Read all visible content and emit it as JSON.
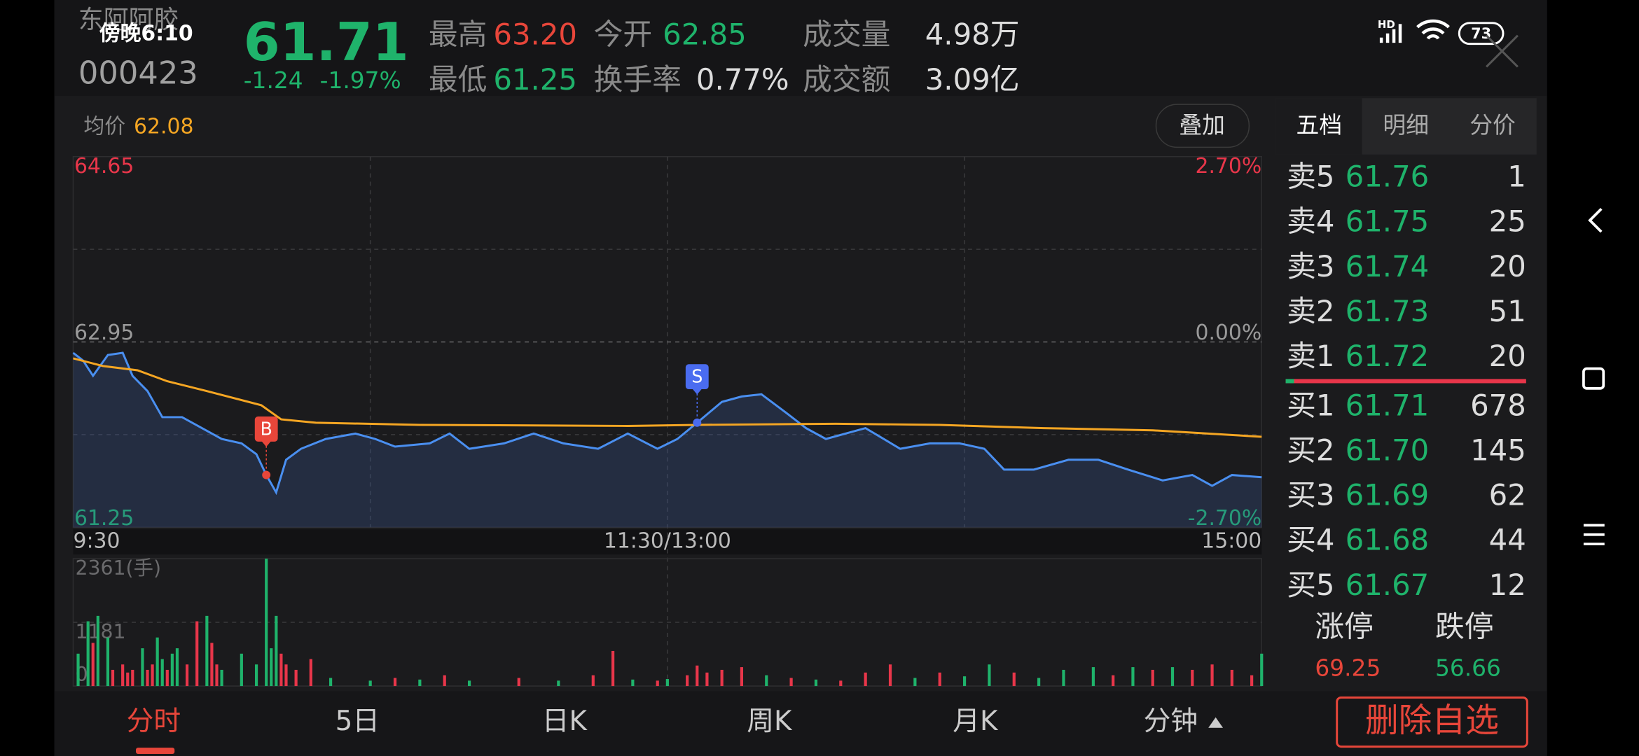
{
  "status_bar": {
    "time": "傍晚6:10",
    "network": "HD",
    "battery": "73"
  },
  "header": {
    "name": "东阿阿胶",
    "code": "000423",
    "price": "61.71",
    "change": "-1.24",
    "change_pct": "-1.97%",
    "stats": [
      {
        "label": "最高",
        "value": "63.20"
      },
      {
        "label": "今开",
        "value": "62.85"
      },
      {
        "label": "成交量",
        "value": "4.98万"
      },
      {
        "label": "最低",
        "value": "61.25"
      },
      {
        "label": "换手率",
        "value": "0.77%"
      },
      {
        "label": "成交额",
        "value": "3.09亿"
      }
    ]
  },
  "avg_price": {
    "label": "均价",
    "value": "62.08"
  },
  "overlay_button": "叠加",
  "side_tabs": [
    "五档",
    "明细",
    "分价"
  ],
  "order_book": {
    "asks": [
      {
        "label": "卖5",
        "price": "61.76",
        "volume": "1"
      },
      {
        "label": "卖4",
        "price": "61.75",
        "volume": "25"
      },
      {
        "label": "卖3",
        "price": "61.74",
        "volume": "20"
      },
      {
        "label": "卖2",
        "price": "61.73",
        "volume": "51"
      },
      {
        "label": "卖1",
        "price": "61.72",
        "volume": "20"
      }
    ],
    "bids": [
      {
        "label": "买1",
        "price": "61.71",
        "volume": "678"
      },
      {
        "label": "买2",
        "price": "61.70",
        "volume": "145"
      },
      {
        "label": "买3",
        "price": "61.69",
        "volume": "62"
      },
      {
        "label": "买4",
        "price": "61.68",
        "volume": "44"
      },
      {
        "label": "买5",
        "price": "61.67",
        "volume": "12"
      }
    ]
  },
  "limits": {
    "up_label": "涨停",
    "down_label": "跌停",
    "up": "69.25",
    "down": "56.66"
  },
  "bottom_tabs": [
    "分时",
    "5日",
    "日K",
    "周K",
    "月K",
    "分钟"
  ],
  "delete_button": "删除自选",
  "chart_data": [
    {
      "type": "line",
      "xlim": [
        0,
        240
      ],
      "xticks": [
        {
          "value": 0,
          "label": "9:30"
        },
        {
          "value": 120,
          "label": "11:30/13:00"
        },
        {
          "value": 240,
          "label": "15:00"
        }
      ],
      "ylim": [
        61.25,
        64.65
      ],
      "yticks": [
        64.65,
        62.95,
        61.25
      ],
      "ytick_colors": [
        "#e8364a",
        "#9a9a9a",
        "#1fb36b"
      ],
      "y2lim": [
        -2.7,
        2.7
      ],
      "y2ticks": [
        {
          "value": 2.7,
          "label": "2.70%"
        },
        {
          "value": 0,
          "label": "0.00%"
        },
        {
          "value": -2.7,
          "label": "-2.70%"
        }
      ],
      "y2tick_colors": [
        "#e8364a",
        "#9a9a9a",
        "#1fb36b"
      ],
      "grid": true,
      "series": [
        {
          "color": "#4a8ff0",
          "area": true,
          "x": [
            0,
            2,
            4,
            7,
            10,
            12,
            15,
            18,
            22,
            26,
            30,
            34,
            37,
            39,
            41,
            43,
            46,
            51,
            57,
            61,
            65,
            72,
            76,
            80,
            87,
            93,
            99,
            106,
            112,
            118,
            122,
            126,
            131,
            135,
            139,
            144,
            148,
            152,
            156,
            160,
            167,
            173,
            179,
            184,
            188,
            194,
            201,
            207,
            213,
            220,
            226,
            230,
            234,
            240
          ],
          "values": [
            62.85,
            62.78,
            62.64,
            62.83,
            62.85,
            62.64,
            62.5,
            62.26,
            62.26,
            62.16,
            62.06,
            62.02,
            61.92,
            61.73,
            61.57,
            61.87,
            61.97,
            62.06,
            62.11,
            62.06,
            61.99,
            62.02,
            62.11,
            61.97,
            62.02,
            62.11,
            62.02,
            61.97,
            62.11,
            61.97,
            62.06,
            62.21,
            62.4,
            62.45,
            62.47,
            62.3,
            62.16,
            62.06,
            62.11,
            62.16,
            61.97,
            62.02,
            62.02,
            61.97,
            61.78,
            61.78,
            61.87,
            61.87,
            61.78,
            61.68,
            61.73,
            61.63,
            61.73,
            61.71
          ]
        },
        {
          "color": "#f5a623",
          "x": [
            0,
            6,
            13,
            19,
            27,
            38,
            42,
            49,
            70,
            112,
            126,
            154,
            175,
            196,
            218,
            240
          ],
          "values": [
            62.8,
            62.73,
            62.69,
            62.59,
            62.5,
            62.37,
            62.24,
            62.21,
            62.19,
            62.18,
            62.19,
            62.2,
            62.19,
            62.16,
            62.14,
            62.08
          ]
        }
      ],
      "annotations": [
        {
          "label": "B",
          "x": 39,
          "y": 61.73,
          "color": "#e8463a"
        },
        {
          "label": "S",
          "x": 126,
          "y": 62.21,
          "color": "#4a6cf0"
        }
      ]
    },
    {
      "type": "bar",
      "xlim": [
        0,
        240
      ],
      "ylim": [
        0,
        2361
      ],
      "yticks": [
        {
          "value": 2361,
          "label": "2361(手)"
        },
        1181,
        0
      ],
      "grid": true,
      "x": [
        1,
        3,
        4,
        5,
        7,
        8,
        10,
        11,
        12,
        14,
        15,
        16,
        17,
        18,
        19,
        20,
        21,
        23,
        25,
        27,
        28,
        29,
        30,
        34,
        37,
        39,
        40,
        41,
        42,
        43,
        45,
        48,
        52,
        60,
        65,
        70,
        75,
        80,
        90,
        98,
        105,
        109,
        113,
        118,
        120,
        124,
        126,
        128,
        131,
        135,
        140,
        145,
        150,
        155,
        160,
        165,
        170,
        175,
        180,
        185,
        190,
        195,
        200,
        206,
        210,
        214,
        218,
        222,
        226,
        230,
        234,
        238,
        240
      ],
      "values": [
        600,
        1200,
        800,
        1300,
        900,
        300,
        400,
        250,
        300,
        700,
        300,
        400,
        900,
        500,
        300,
        600,
        700,
        400,
        1200,
        1300,
        800,
        400,
        300,
        600,
        400,
        2361,
        700,
        1300,
        600,
        400,
        300,
        500,
        150,
        100,
        150,
        120,
        200,
        100,
        150,
        100,
        200,
        650,
        120,
        100,
        130,
        200,
        380,
        250,
        300,
        350,
        200,
        150,
        120,
        100,
        250,
        400,
        150,
        250,
        180,
        400,
        250,
        150,
        300,
        350,
        200,
        350,
        300,
        350,
        300,
        400,
        300,
        200,
        600
      ],
      "colors": [
        "#1fb36b",
        "#1fb36b",
        "#e8364a",
        "#1fb36b",
        "#1fb36b",
        "#e8364a",
        "#e8364a",
        "#e8364a",
        "#e8364a",
        "#1fb36b",
        "#e8364a",
        "#e8364a",
        "#1fb36b",
        "#1fb36b",
        "#e8364a",
        "#1fb36b",
        "#1fb36b",
        "#e8364a",
        "#e8364a",
        "#1fb36b",
        "#e8364a",
        "#e8364a",
        "#1fb36b",
        "#1fb36b",
        "#1fb36b",
        "#1fb36b",
        "#1fb36b",
        "#1fb36b",
        "#e8364a",
        "#e8364a",
        "#e8364a",
        "#e8364a",
        "#1fb36b",
        "#1fb36b",
        "#e8364a",
        "#1fb36b",
        "#e8364a",
        "#1fb36b",
        "#e8364a",
        "#1fb36b",
        "#e8364a",
        "#e8364a",
        "#1fb36b",
        "#e8364a",
        "#1fb36b",
        "#e8364a",
        "#e8364a",
        "#e8364a",
        "#e8364a",
        "#e8364a",
        "#1fb36b",
        "#e8364a",
        "#1fb36b",
        "#e8364a",
        "#e8364a",
        "#e8364a",
        "#1fb36b",
        "#e8364a",
        "#1fb36b",
        "#1fb36b",
        "#e8364a",
        "#1fb36b",
        "#1fb36b",
        "#1fb36b",
        "#e8364a",
        "#1fb36b",
        "#e8364a",
        "#1fb36b",
        "#e8364a",
        "#e8364a",
        "#e8364a",
        "#e8364a",
        "#1fb36b"
      ]
    }
  ]
}
